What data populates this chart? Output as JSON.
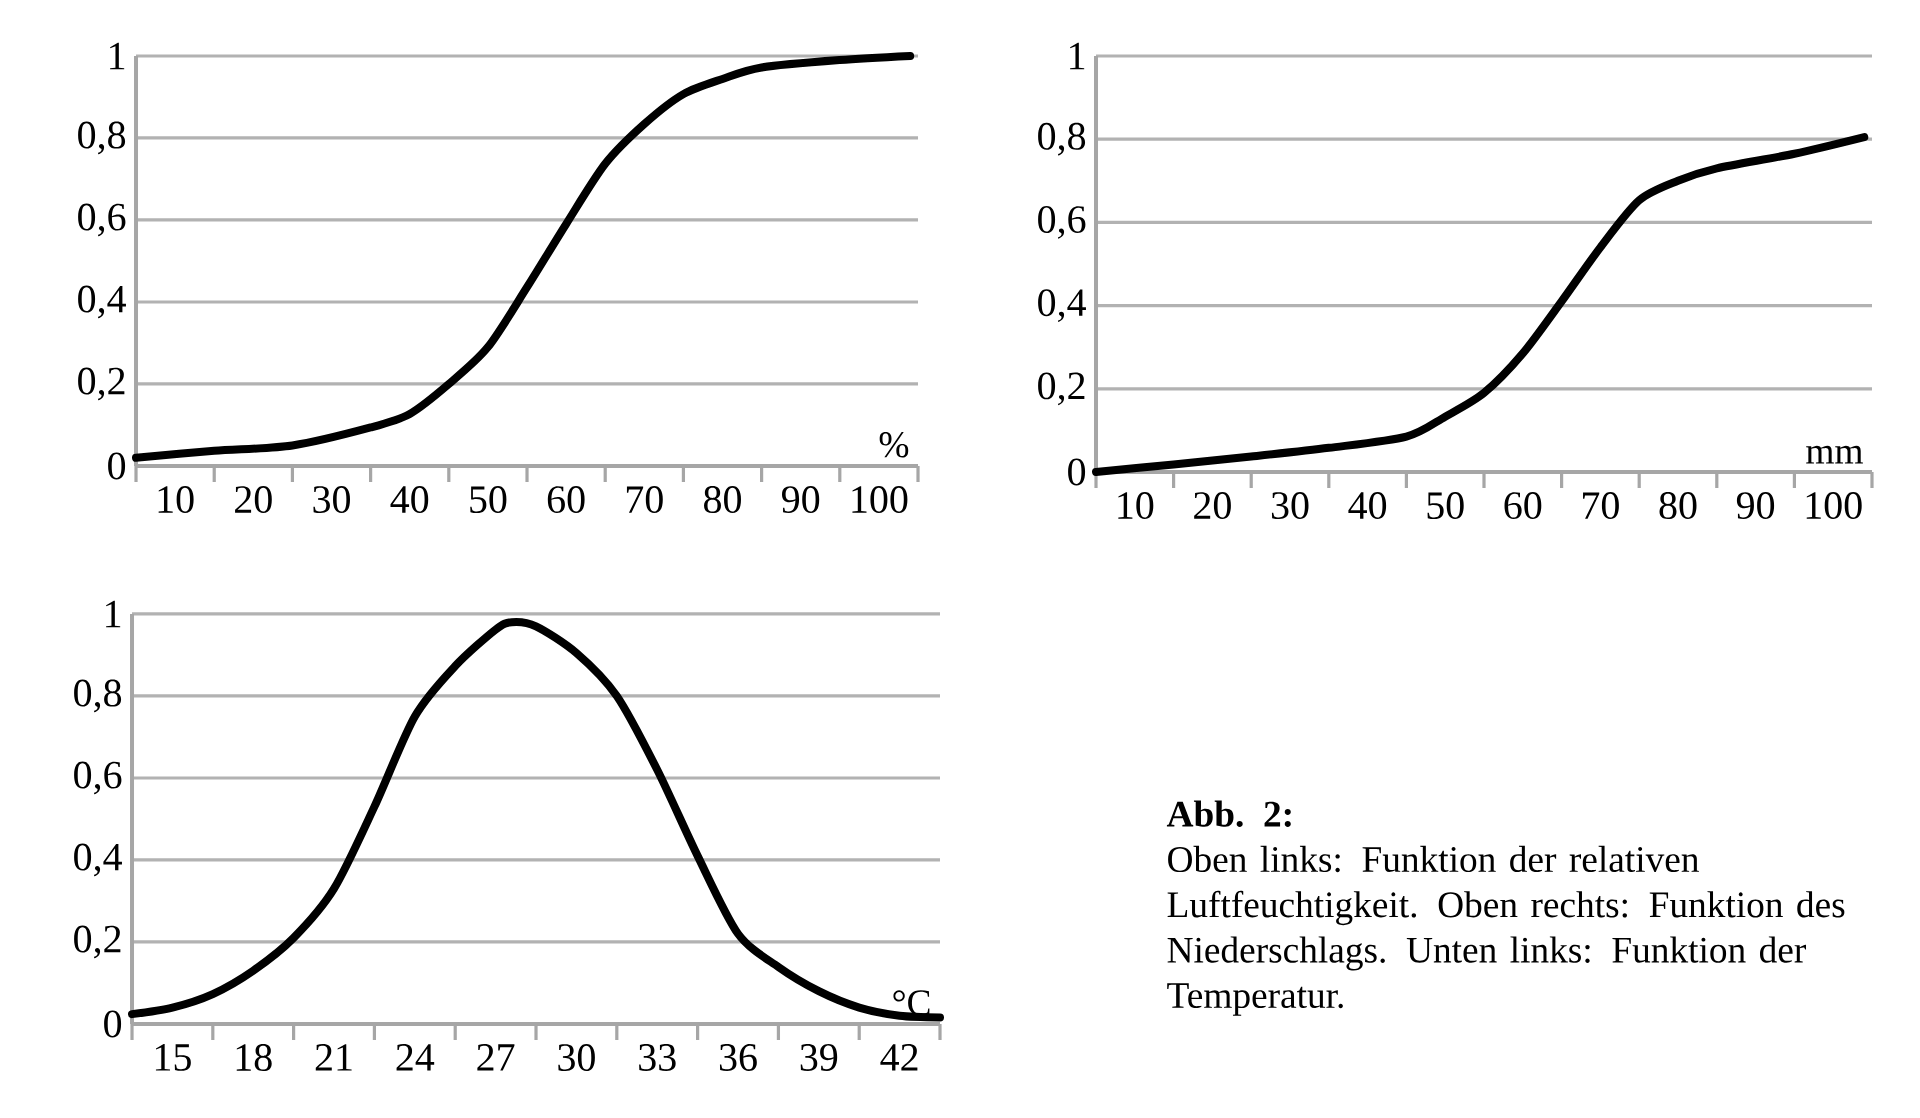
{
  "chart_data": [
    {
      "type": "line",
      "xlabel": "%",
      "xlim": [
        5,
        105
      ],
      "ylim": [
        0,
        1
      ],
      "grid": "y",
      "marker": "none",
      "line_style": "solid",
      "xticks": [
        {
          "value": 5,
          "label": null
        },
        10,
        {
          "value": 15,
          "label": null
        },
        20,
        {
          "value": 25,
          "label": null
        },
        30,
        {
          "value": 35,
          "label": null
        },
        40,
        {
          "value": 45,
          "label": null
        },
        50,
        {
          "value": 55,
          "label": null
        },
        60,
        {
          "value": 65,
          "label": null
        },
        70,
        {
          "value": 75,
          "label": null
        },
        80,
        {
          "value": 85,
          "label": null
        },
        90,
        {
          "value": 95,
          "label": null
        },
        100,
        {
          "value": 105,
          "label": null
        }
      ],
      "yticks": [
        0,
        {
          "value": 0.2,
          "label": "0,2"
        },
        {
          "value": 0.4,
          "label": "0,4"
        },
        {
          "value": 0.6,
          "label": "0,6"
        },
        {
          "value": 0.8,
          "label": "0,8"
        },
        1
      ],
      "series": [
        {
          "color": "#000000",
          "x": [
            5,
            15,
            25,
            35,
            40,
            45,
            50,
            55,
            60,
            65,
            70,
            75,
            80,
            85,
            95,
            104
          ],
          "values": [
            0.02,
            0.037,
            0.05,
            0.094,
            0.127,
            0.2,
            0.29,
            0.436,
            0.59,
            0.737,
            0.834,
            0.907,
            0.944,
            0.972,
            0.99,
            1.0
          ]
        }
      ]
    },
    {
      "type": "line",
      "xlabel": "mm",
      "xlim": [
        5,
        105
      ],
      "ylim": [
        0,
        1
      ],
      "grid": "y",
      "marker": "none",
      "line_style": "solid",
      "xticks": [
        {
          "value": 5,
          "label": null
        },
        10,
        {
          "value": 15,
          "label": null
        },
        20,
        {
          "value": 25,
          "label": null
        },
        30,
        {
          "value": 35,
          "label": null
        },
        40,
        {
          "value": 45,
          "label": null
        },
        50,
        {
          "value": 55,
          "label": null
        },
        60,
        {
          "value": 65,
          "label": null
        },
        70,
        {
          "value": 75,
          "label": null
        },
        80,
        {
          "value": 85,
          "label": null
        },
        90,
        {
          "value": 95,
          "label": null
        },
        100,
        {
          "value": 105,
          "label": null
        }
      ],
      "yticks": [
        0,
        {
          "value": 0.2,
          "label": "0,2"
        },
        {
          "value": 0.4,
          "label": "0,4"
        },
        {
          "value": 0.6,
          "label": "0,6"
        },
        {
          "value": 0.8,
          "label": "0,8"
        },
        1
      ],
      "series": [
        {
          "color": "#000000",
          "x": [
            5,
            15,
            25,
            35,
            45,
            50,
            55,
            60,
            65,
            70,
            75,
            80,
            85,
            95,
            104
          ],
          "values": [
            0,
            0.018,
            0.037,
            0.058,
            0.085,
            0.133,
            0.19,
            0.285,
            0.41,
            0.54,
            0.653,
            0.7,
            0.73,
            0.765,
            0.805
          ]
        }
      ]
    },
    {
      "type": "line",
      "xlabel": "°C",
      "xlim": [
        13.5,
        43.5
      ],
      "ylim": [
        0,
        1
      ],
      "grid": "y",
      "marker": "none",
      "line_style": "solid",
      "xticks": [
        {
          "value": 13.5,
          "label": null
        },
        15,
        {
          "value": 16.5,
          "label": null
        },
        18,
        {
          "value": 19.5,
          "label": null
        },
        21,
        {
          "value": 22.5,
          "label": null
        },
        24,
        {
          "value": 25.5,
          "label": null
        },
        27,
        {
          "value": 28.5,
          "label": null
        },
        30,
        {
          "value": 31.5,
          "label": null
        },
        33,
        {
          "value": 34.5,
          "label": null
        },
        36,
        {
          "value": 37.5,
          "label": null
        },
        39,
        {
          "value": 40.5,
          "label": null
        },
        42,
        {
          "value": 43.5,
          "label": null
        }
      ],
      "yticks": [
        0,
        {
          "value": 0.2,
          "label": "0,2"
        },
        {
          "value": 0.4,
          "label": "0,4"
        },
        {
          "value": 0.6,
          "label": "0,6"
        },
        {
          "value": 0.8,
          "label": "0,8"
        },
        1
      ],
      "series": [
        {
          "color": "#000000",
          "x": [
            13.5,
            15,
            16.5,
            18,
            19.5,
            21,
            22.5,
            24,
            25.5,
            27,
            27.6,
            28.5,
            30,
            31.5,
            33,
            34.5,
            36,
            37.5,
            39,
            40.5,
            42,
            43.5
          ],
          "values": [
            0.024,
            0.04,
            0.073,
            0.13,
            0.21,
            0.33,
            0.53,
            0.75,
            0.873,
            0.962,
            0.98,
            0.97,
            0.905,
            0.8,
            0.62,
            0.41,
            0.22,
            0.139,
            0.08,
            0.04,
            0.02,
            0.016
          ]
        }
      ]
    },
    {
      "type": "other",
      "title": "Abb. 2:",
      "annotations": [
        "Oben links: Funktion der relativen Luftfeuchtigkeit. Oben rechts: Funktion des Niederschlags. Unten links: Funktion der Temperatur."
      ]
    }
  ]
}
